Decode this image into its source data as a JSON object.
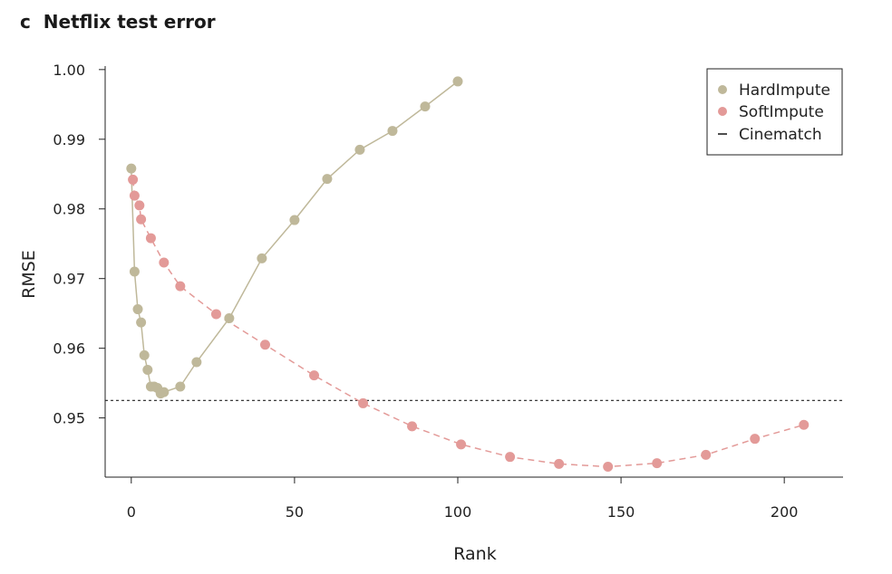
{
  "panel_letter": "c",
  "chart_data": {
    "type": "scatter",
    "title": "Netflix test error",
    "xlabel": "Rank",
    "ylabel": "RMSE",
    "xlim": [
      -8,
      218
    ],
    "ylim": [
      0.9415,
      1.0005
    ],
    "xticks": [
      0,
      50,
      100,
      150,
      200
    ],
    "xtick_labels": [
      "0",
      "50",
      "100",
      "150",
      "200"
    ],
    "yticks": [
      0.95,
      0.96,
      0.97,
      0.98,
      0.99,
      1.0
    ],
    "ytick_labels": [
      "0.95",
      "0.96",
      "0.97",
      "0.98",
      "0.99",
      "1.00"
    ],
    "grid": false,
    "legend_position": "top-right",
    "series": [
      {
        "name": "HardImpute",
        "color": "#bfb89a",
        "marker": "circle",
        "line": "solid",
        "x": [
          0,
          1,
          2,
          3,
          4,
          5,
          6,
          7,
          8,
          9,
          10,
          15,
          20,
          30,
          40,
          50,
          60,
          70,
          80,
          90,
          100
        ],
        "y": [
          0.9858,
          0.971,
          0.9656,
          0.9637,
          0.959,
          0.9569,
          0.9545,
          0.9545,
          0.9543,
          0.9535,
          0.9537,
          0.9545,
          0.958,
          0.9643,
          0.9729,
          0.9784,
          0.9843,
          0.9885,
          0.9912,
          0.9947,
          0.9983
        ]
      },
      {
        "name": "SoftImpute",
        "color": "#e39a98",
        "marker": "circle",
        "line": "dashed",
        "x": [
          0.5,
          1,
          2.5,
          3,
          6,
          10,
          15,
          26,
          41,
          56,
          71,
          86,
          101,
          116,
          131,
          146,
          161,
          176,
          191,
          206
        ],
        "y": [
          0.9842,
          0.9819,
          0.9805,
          0.9785,
          0.9758,
          0.9723,
          0.9689,
          0.9649,
          0.9605,
          0.9561,
          0.9521,
          0.9488,
          0.9462,
          0.9444,
          0.9434,
          0.943,
          0.9435,
          0.9447,
          0.947,
          0.949
        ]
      },
      {
        "name": "Cinematch",
        "color": "#222222",
        "line": "dotted",
        "y_const": 0.9525
      }
    ]
  }
}
